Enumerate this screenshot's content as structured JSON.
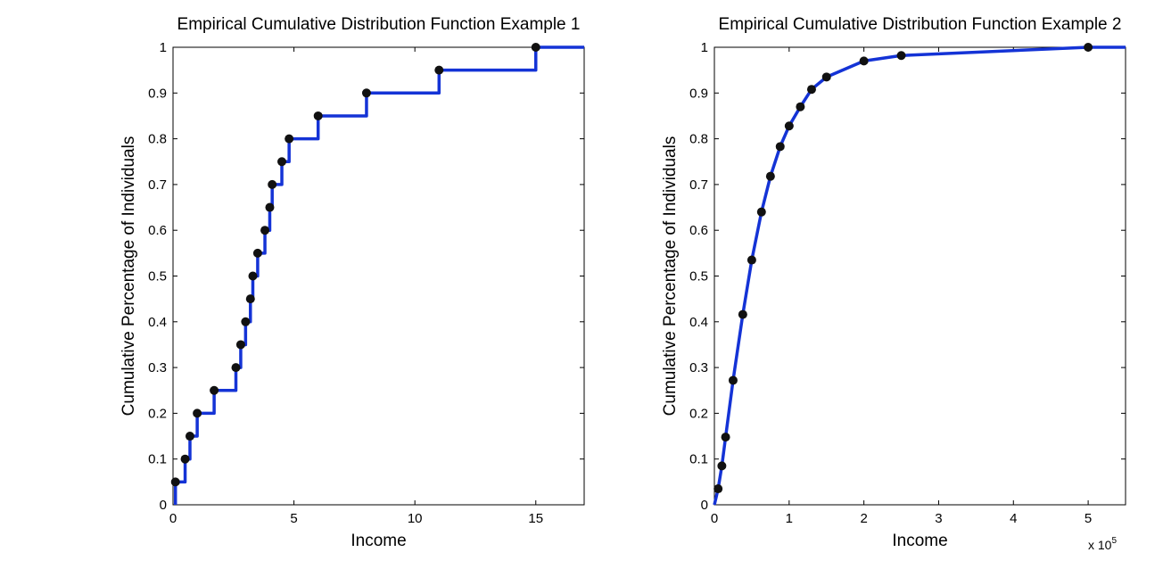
{
  "chart_data": [
    {
      "type": "line",
      "title": "Empirical Cumulative Distribution Function Example 1",
      "xlabel": "Income",
      "ylabel": "Cumulative Percentage of Individuals",
      "xlim": [
        0,
        17
      ],
      "ylim": [
        0,
        1
      ],
      "xticks": [
        0,
        5,
        10,
        15
      ],
      "yticks": [
        0,
        0.1,
        0.2,
        0.3,
        0.4,
        0.5,
        0.6,
        0.7,
        0.8,
        0.9,
        1
      ],
      "x_exponent_label": "",
      "step": true,
      "grid": false,
      "line_color": "#1433d6",
      "marker_color": "#111111",
      "points": [
        {
          "x": 0.1,
          "y": 0.05
        },
        {
          "x": 0.5,
          "y": 0.1
        },
        {
          "x": 0.7,
          "y": 0.15
        },
        {
          "x": 1.0,
          "y": 0.2
        },
        {
          "x": 1.7,
          "y": 0.25
        },
        {
          "x": 2.6,
          "y": 0.3
        },
        {
          "x": 2.8,
          "y": 0.35
        },
        {
          "x": 3.0,
          "y": 0.4
        },
        {
          "x": 3.2,
          "y": 0.45
        },
        {
          "x": 3.3,
          "y": 0.5
        },
        {
          "x": 3.5,
          "y": 0.55
        },
        {
          "x": 3.8,
          "y": 0.6
        },
        {
          "x": 4.0,
          "y": 0.65
        },
        {
          "x": 4.1,
          "y": 0.7
        },
        {
          "x": 4.5,
          "y": 0.75
        },
        {
          "x": 4.8,
          "y": 0.8
        },
        {
          "x": 6.0,
          "y": 0.85
        },
        {
          "x": 8.0,
          "y": 0.9
        },
        {
          "x": 11.0,
          "y": 0.95
        },
        {
          "x": 15.0,
          "y": 1.0
        }
      ],
      "line_end_x": 17
    },
    {
      "type": "line",
      "title": "Empirical Cumulative Distribution Function Example 2",
      "xlabel": "Income",
      "ylabel": "Cumulative Percentage of Individuals",
      "xlim": [
        0,
        5.5
      ],
      "ylim": [
        0,
        1
      ],
      "xticks": [
        0,
        1,
        2,
        3,
        4,
        5
      ],
      "yticks": [
        0,
        0.1,
        0.2,
        0.3,
        0.4,
        0.5,
        0.6,
        0.7,
        0.8,
        0.9,
        1
      ],
      "x_exponent_label": "x 10",
      "x_exponent_power": "5",
      "step": false,
      "grid": false,
      "line_color": "#1433d6",
      "marker_color": "#111111",
      "points": [
        {
          "x": 0.05,
          "y": 0.035
        },
        {
          "x": 0.1,
          "y": 0.085
        },
        {
          "x": 0.15,
          "y": 0.148
        },
        {
          "x": 0.25,
          "y": 0.272
        },
        {
          "x": 0.38,
          "y": 0.416
        },
        {
          "x": 0.5,
          "y": 0.535
        },
        {
          "x": 0.63,
          "y": 0.64
        },
        {
          "x": 0.75,
          "y": 0.718
        },
        {
          "x": 0.88,
          "y": 0.783
        },
        {
          "x": 1.0,
          "y": 0.828
        },
        {
          "x": 1.15,
          "y": 0.87
        },
        {
          "x": 1.3,
          "y": 0.908
        },
        {
          "x": 1.5,
          "y": 0.935
        },
        {
          "x": 2.0,
          "y": 0.97
        },
        {
          "x": 2.5,
          "y": 0.982
        },
        {
          "x": 5.0,
          "y": 1.0
        }
      ],
      "line_start": {
        "x": 0,
        "y": 0
      },
      "line_end_x": 5.5
    }
  ]
}
